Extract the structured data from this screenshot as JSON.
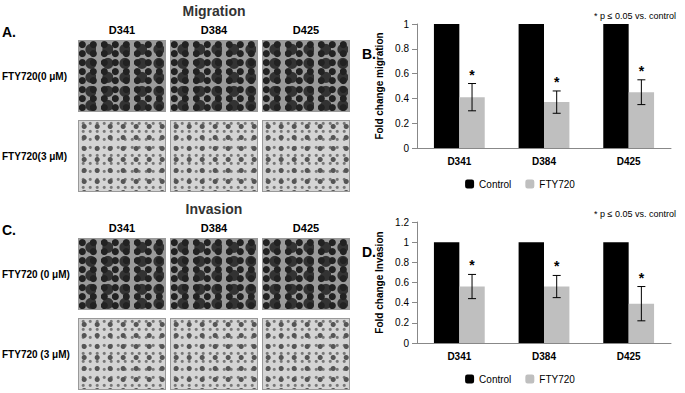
{
  "image_panels": [
    {
      "panel_label": "A.",
      "title": "Migration",
      "columns": [
        "D341",
        "D384",
        "D425"
      ],
      "rows": [
        "FTY720(0 μM)",
        "FTY720(3 μM)"
      ]
    },
    {
      "panel_label": "C.",
      "title": "Invasion",
      "columns": [
        "D341",
        "D384",
        "D425"
      ],
      "rows": [
        "FTY720 (0 μM)",
        "FTY720 (3 μM)"
      ]
    }
  ],
  "chart_data": [
    {
      "type": "bar",
      "panel_label": "B.",
      "annotation": "* p ≤ 0.05 vs. control",
      "ylabel": "Fold change migration",
      "categories": [
        "D341",
        "D384",
        "D425"
      ],
      "series": [
        {
          "name": "Control",
          "color": "#000000",
          "values": [
            1,
            1,
            1
          ]
        },
        {
          "name": "FTY720",
          "color": "#bfbfbf",
          "values": [
            0.41,
            0.37,
            0.45
          ],
          "errors": [
            0.11,
            0.09,
            0.1
          ],
          "annotations": [
            "*",
            "*",
            "*"
          ]
        }
      ],
      "ylim": [
        0,
        1
      ],
      "yticks": [
        0,
        0.2,
        0.4,
        0.6,
        0.8,
        1
      ],
      "grid": false,
      "legend": "bottom"
    },
    {
      "type": "bar",
      "panel_label": "D.",
      "annotation": "* p ≤ 0.05 vs. control",
      "ylabel": "Fold change Invasion",
      "categories": [
        "D341",
        "D384",
        "D425"
      ],
      "series": [
        {
          "name": "Control",
          "color": "#000000",
          "values": [
            1,
            1,
            1
          ]
        },
        {
          "name": "FTY720",
          "color": "#bfbfbf",
          "values": [
            0.56,
            0.56,
            0.39
          ],
          "errors": [
            0.12,
            0.11,
            0.17
          ],
          "annotations": [
            "*",
            "*",
            "*"
          ]
        }
      ],
      "ylim": [
        0,
        1.2
      ],
      "yticks": [
        0,
        0.2,
        0.4,
        0.6,
        0.8,
        1,
        1.2
      ],
      "grid": false,
      "legend": "bottom"
    }
  ]
}
